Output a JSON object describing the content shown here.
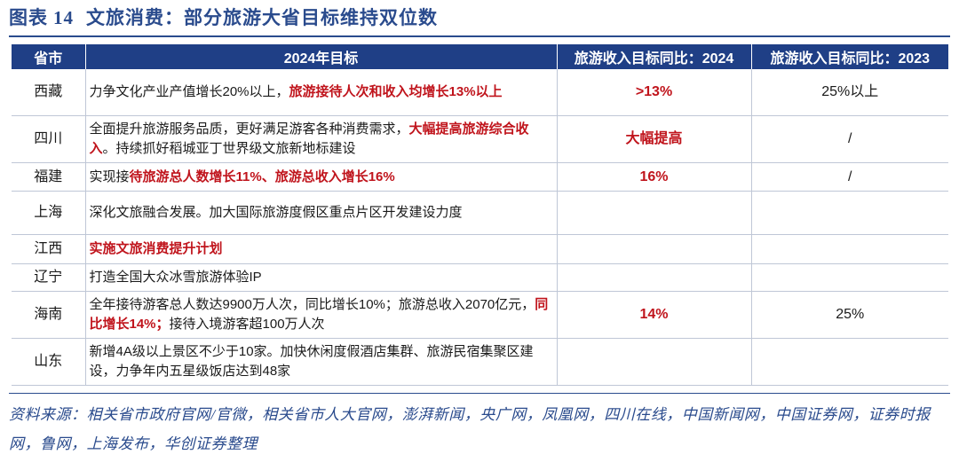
{
  "figure": {
    "label": "图表",
    "number": "14",
    "title": "文旅消费：部分旅游大省目标维持双位数"
  },
  "table": {
    "headers": [
      "省市",
      "2024年目标",
      "旅游收入目标同比：2024",
      "旅游收入目标同比：2023"
    ],
    "rows": [
      {
        "province": "西藏",
        "goal_plain": "力争文化产业产值增长20%以上，",
        "goal_highlight": "旅游接待人次和收入均增长13%以上",
        "goal_tail": "",
        "target_2024": ">13%",
        "target_2023": "25%以上"
      },
      {
        "province": "四川",
        "goal_plain": "全面提升旅游服务品质，更好满足游客各种消费需求，",
        "goal_highlight": "大幅提高旅游综合收入",
        "goal_tail": "。持续抓好稻城亚丁世界级文旅新地标建设",
        "target_2024": "大幅提高",
        "target_2023": "/"
      },
      {
        "province": "福建",
        "goal_plain": "实现接",
        "goal_highlight": "待旅游总人数增长11%、旅游总收入增长16%",
        "goal_tail": "",
        "target_2024": "16%",
        "target_2023": "/"
      },
      {
        "province": "上海",
        "goal_plain": "深化文旅融合发展。加大国际旅游度假区重点片区开发建设力度",
        "goal_highlight": "",
        "goal_tail": "",
        "target_2024": "",
        "target_2023": ""
      },
      {
        "province": "江西",
        "goal_plain": "",
        "goal_highlight": "实施文旅消费提升计划",
        "goal_tail": "",
        "target_2024": "",
        "target_2023": ""
      },
      {
        "province": "辽宁",
        "goal_plain": "打造全国大众冰雪旅游体验IP",
        "goal_highlight": "",
        "goal_tail": "",
        "target_2024": "",
        "target_2023": ""
      },
      {
        "province": "海南",
        "goal_plain": "全年接待游客总人数达9900万人次，同比增长10%；旅游总收入2070亿元，",
        "goal_highlight": "同比增长14%；",
        "goal_tail": "接待入境游客超100万人次",
        "target_2024": "14%",
        "target_2023": "25%"
      },
      {
        "province": "山东",
        "goal_plain": "新增4A级以上景区不少于10家。加快休闲度假酒店集群、旅游民宿集聚区建设，力争年内五星级饭店达到48家",
        "goal_highlight": "",
        "goal_tail": "",
        "target_2024": "",
        "target_2023": ""
      }
    ]
  },
  "source": "资料来源：相关省市政府官网/官微，相关省市人大官网，澎湃新闻，央广网，凤凰网，四川在线，中国新闻网，中国证券网，证券时报网，鲁网，上海发布，华创证券整理",
  "colors": {
    "header_bg": "#1f3f86",
    "title_blue": "#2a4b8d",
    "highlight_red": "#c0141c"
  }
}
